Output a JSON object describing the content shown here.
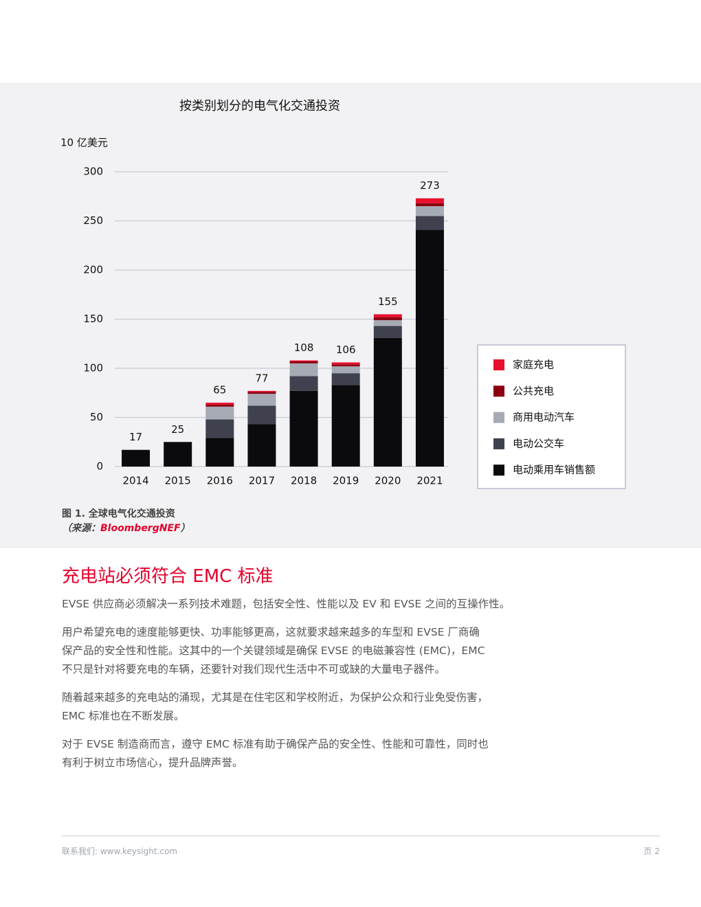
{
  "chart_data": {
    "type": "stacked_bar",
    "title": "按类别划分的电气化交通投资",
    "y_label": "10 亿美元",
    "categories": [
      "2014",
      "2015",
      "2016",
      "2017",
      "2018",
      "2019",
      "2020",
      "2021"
    ],
    "series": [
      {
        "name": "电动乘用车销售额",
        "color": "#0b0b0d",
        "values": [
          17,
          25,
          29,
          43,
          77,
          83,
          131,
          241
        ]
      },
      {
        "name": "电动公交车",
        "color": "#3f414f",
        "values": [
          0,
          0,
          19,
          19,
          15,
          12,
          12,
          14
        ]
      },
      {
        "name": "商用电动汽车",
        "color": "#a6aab5",
        "values": [
          0,
          0,
          13,
          12,
          13,
          7,
          6,
          10
        ]
      },
      {
        "name": "公共充电",
        "color": "#8a0010",
        "values": [
          0,
          0,
          2,
          2,
          2,
          2,
          3,
          3
        ]
      },
      {
        "name": "家庭充电",
        "color": "#e8102e",
        "values": [
          0,
          0,
          2,
          1,
          1,
          2,
          3,
          5
        ]
      }
    ],
    "totals": [
      17,
      25,
      65,
      77,
      108,
      106,
      155,
      273
    ],
    "ylim": [
      0,
      300
    ],
    "yticks": [
      0,
      50,
      100,
      150,
      200,
      250,
      300
    ],
    "grid": true,
    "legend": "right"
  },
  "figure": {
    "caption": "图 1.  全球电气化交通投资",
    "source_prefix": "（来源：",
    "source_name": "BloombergNEF",
    "source_suffix": "）"
  },
  "section": {
    "title": "充电站必须符合 EMC 标准",
    "paragraphs": [
      [
        "EVSE 供应商必须解决一系列技术难题，包括安全性、性能以及 EV 和 EVSE 之间的互操作性。"
      ],
      [
        "用户希望充电的速度能够更快、功率能够更高，这就要求越来越多的车型和 EVSE 厂商确",
        "保产品的安全性和性能。这其中的一个关键领域是确保 EVSE 的电磁兼容性 (EMC)，EMC",
        "不只是针对将要充电的车辆，还要针对我们现代生活中不可或缺的大量电子器件。"
      ],
      [
        "随着越来越多的充电站的涌现，尤其是在住宅区和学校附近，为保护公众和行业免受伤害，",
        "EMC 标准也在不断发展。"
      ],
      [
        "对于 EVSE 制造商而言，遵守 EMC 标准有助于确保产品的安全性、性能和可靠性，同时也",
        "有利于树立市场信心，提升品牌声誉。"
      ]
    ]
  },
  "footer": {
    "contact": "联系我们: www.keysight.com",
    "page": "页 2"
  }
}
